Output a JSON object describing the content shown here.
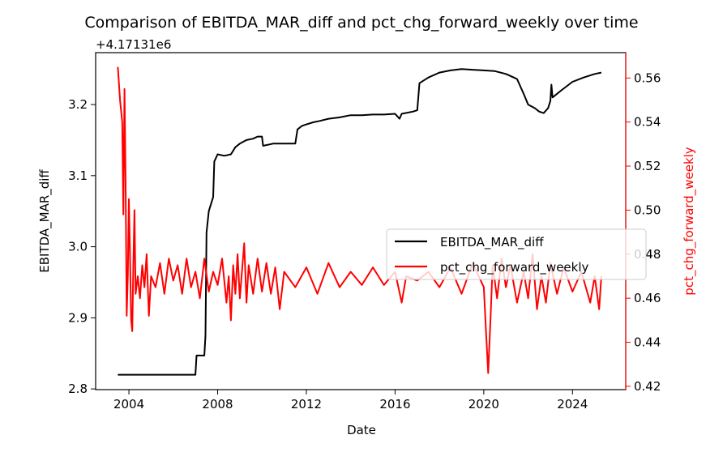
{
  "chart_data": {
    "type": "line",
    "title": "Comparison of EBITDA_MAR_diff and pct_chg_forward_weekly over time",
    "xlabel": "Date",
    "ylabel_left": "EBITDA_MAR_diff",
    "ylabel_right": "pct_chg_forward_weekly",
    "offset_label": "+4.17131e6",
    "x_ticks": [
      "2004",
      "2008",
      "2012",
      "2016",
      "2020",
      "2024"
    ],
    "y_left_ticks": [
      "2.8",
      "2.9",
      "3.0",
      "3.1",
      "3.2"
    ],
    "y_right_ticks": [
      "0.42",
      "0.44",
      "0.46",
      "0.48",
      "0.50",
      "0.52",
      "0.54",
      "0.56"
    ],
    "xlim": [
      2002.5,
      2026.4
    ],
    "ylim_left": [
      2.799,
      3.273
    ],
    "ylim_right": [
      0.4185,
      0.5715
    ],
    "legend": {
      "placement": "center-right",
      "entries": [
        "EBITDA_MAR_diff",
        "pct_chg_forward_weekly"
      ]
    },
    "colors": {
      "left": "#000000",
      "right": "#ff0000"
    },
    "series": [
      {
        "name": "EBITDA_MAR_diff",
        "axis": "left",
        "color": "#000000",
        "points": [
          [
            2003.5,
            2.82
          ],
          [
            2007.0,
            2.82
          ],
          [
            2007.05,
            2.847
          ],
          [
            2007.4,
            2.847
          ],
          [
            2007.45,
            2.875
          ],
          [
            2007.5,
            3.02
          ],
          [
            2007.6,
            3.05
          ],
          [
            2007.7,
            3.06
          ],
          [
            2007.8,
            3.07
          ],
          [
            2007.85,
            3.12
          ],
          [
            2008.0,
            3.13
          ],
          [
            2008.3,
            3.128
          ],
          [
            2008.6,
            3.13
          ],
          [
            2008.8,
            3.14
          ],
          [
            2009.0,
            3.145
          ],
          [
            2009.3,
            3.15
          ],
          [
            2009.6,
            3.152
          ],
          [
            2009.8,
            3.155
          ],
          [
            2010.0,
            3.155
          ],
          [
            2010.05,
            3.142
          ],
          [
            2010.5,
            3.145
          ],
          [
            2011.0,
            3.145
          ],
          [
            2011.5,
            3.145
          ],
          [
            2011.6,
            3.165
          ],
          [
            2011.8,
            3.17
          ],
          [
            2012.0,
            3.172
          ],
          [
            2012.3,
            3.175
          ],
          [
            2012.6,
            3.177
          ],
          [
            2013.0,
            3.18
          ],
          [
            2013.5,
            3.182
          ],
          [
            2014.0,
            3.185
          ],
          [
            2014.5,
            3.185
          ],
          [
            2015.0,
            3.186
          ],
          [
            2015.5,
            3.186
          ],
          [
            2016.0,
            3.187
          ],
          [
            2016.2,
            3.18
          ],
          [
            2016.3,
            3.187
          ],
          [
            2016.8,
            3.19
          ],
          [
            2017.0,
            3.192
          ],
          [
            2017.1,
            3.23
          ],
          [
            2017.5,
            3.238
          ],
          [
            2018.0,
            3.245
          ],
          [
            2018.5,
            3.248
          ],
          [
            2019.0,
            3.25
          ],
          [
            2019.5,
            3.249
          ],
          [
            2020.0,
            3.248
          ],
          [
            2020.5,
            3.247
          ],
          [
            2021.0,
            3.243
          ],
          [
            2021.5,
            3.236
          ],
          [
            2021.8,
            3.215
          ],
          [
            2022.0,
            3.2
          ],
          [
            2022.3,
            3.195
          ],
          [
            2022.5,
            3.19
          ],
          [
            2022.7,
            3.188
          ],
          [
            2022.9,
            3.195
          ],
          [
            2023.0,
            3.205
          ],
          [
            2023.05,
            3.228
          ],
          [
            2023.1,
            3.21
          ],
          [
            2023.5,
            3.22
          ],
          [
            2024.0,
            3.232
          ],
          [
            2024.5,
            3.238
          ],
          [
            2025.0,
            3.243
          ],
          [
            2025.3,
            3.245
          ]
        ]
      },
      {
        "name": "pct_chg_forward_weekly",
        "axis": "right",
        "color": "#ff0000",
        "points": [
          [
            2003.5,
            0.565
          ],
          [
            2003.6,
            0.55
          ],
          [
            2003.7,
            0.54
          ],
          [
            2003.75,
            0.498
          ],
          [
            2003.8,
            0.555
          ],
          [
            2003.85,
            0.515
          ],
          [
            2003.9,
            0.452
          ],
          [
            2003.95,
            0.47
          ],
          [
            2004.0,
            0.505
          ],
          [
            2004.05,
            0.48
          ],
          [
            2004.1,
            0.45
          ],
          [
            2004.15,
            0.445
          ],
          [
            2004.2,
            0.475
          ],
          [
            2004.25,
            0.5
          ],
          [
            2004.3,
            0.462
          ],
          [
            2004.4,
            0.47
          ],
          [
            2004.5,
            0.46
          ],
          [
            2004.6,
            0.475
          ],
          [
            2004.7,
            0.465
          ],
          [
            2004.8,
            0.48
          ],
          [
            2004.9,
            0.452
          ],
          [
            2005.0,
            0.47
          ],
          [
            2005.2,
            0.465
          ],
          [
            2005.4,
            0.476
          ],
          [
            2005.6,
            0.462
          ],
          [
            2005.8,
            0.478
          ],
          [
            2006.0,
            0.468
          ],
          [
            2006.2,
            0.475
          ],
          [
            2006.4,
            0.462
          ],
          [
            2006.6,
            0.478
          ],
          [
            2006.8,
            0.465
          ],
          [
            2007.0,
            0.472
          ],
          [
            2007.2,
            0.46
          ],
          [
            2007.4,
            0.478
          ],
          [
            2007.6,
            0.463
          ],
          [
            2007.8,
            0.472
          ],
          [
            2008.0,
            0.466
          ],
          [
            2008.2,
            0.478
          ],
          [
            2008.4,
            0.458
          ],
          [
            2008.5,
            0.47
          ],
          [
            2008.6,
            0.45
          ],
          [
            2008.7,
            0.475
          ],
          [
            2008.8,
            0.462
          ],
          [
            2008.9,
            0.48
          ],
          [
            2009.0,
            0.46
          ],
          [
            2009.2,
            0.485
          ],
          [
            2009.3,
            0.458
          ],
          [
            2009.4,
            0.475
          ],
          [
            2009.6,
            0.462
          ],
          [
            2009.8,
            0.478
          ],
          [
            2010.0,
            0.463
          ],
          [
            2010.2,
            0.476
          ],
          [
            2010.4,
            0.462
          ],
          [
            2010.6,
            0.474
          ],
          [
            2010.8,
            0.455
          ],
          [
            2011.0,
            0.472
          ],
          [
            2011.5,
            0.465
          ],
          [
            2012.0,
            0.474
          ],
          [
            2012.5,
            0.462
          ],
          [
            2013.0,
            0.476
          ],
          [
            2013.5,
            0.465
          ],
          [
            2014.0,
            0.472
          ],
          [
            2014.5,
            0.466
          ],
          [
            2015.0,
            0.474
          ],
          [
            2015.5,
            0.466
          ],
          [
            2016.0,
            0.472
          ],
          [
            2016.3,
            0.458
          ],
          [
            2016.5,
            0.47
          ],
          [
            2017.0,
            0.468
          ],
          [
            2017.5,
            0.472
          ],
          [
            2018.0,
            0.465
          ],
          [
            2018.5,
            0.474
          ],
          [
            2019.0,
            0.462
          ],
          [
            2019.5,
            0.476
          ],
          [
            2020.0,
            0.465
          ],
          [
            2020.1,
            0.445
          ],
          [
            2020.2,
            0.426
          ],
          [
            2020.3,
            0.45
          ],
          [
            2020.4,
            0.475
          ],
          [
            2020.6,
            0.46
          ],
          [
            2020.8,
            0.478
          ],
          [
            2021.0,
            0.465
          ],
          [
            2021.2,
            0.475
          ],
          [
            2021.5,
            0.458
          ],
          [
            2021.8,
            0.472
          ],
          [
            2022.0,
            0.46
          ],
          [
            2022.2,
            0.48
          ],
          [
            2022.4,
            0.455
          ],
          [
            2022.6,
            0.47
          ],
          [
            2022.8,
            0.458
          ],
          [
            2023.0,
            0.476
          ],
          [
            2023.3,
            0.462
          ],
          [
            2023.6,
            0.474
          ],
          [
            2024.0,
            0.463
          ],
          [
            2024.4,
            0.472
          ],
          [
            2024.8,
            0.458
          ],
          [
            2025.0,
            0.47
          ],
          [
            2025.2,
            0.455
          ],
          [
            2025.3,
            0.47
          ]
        ]
      }
    ]
  }
}
